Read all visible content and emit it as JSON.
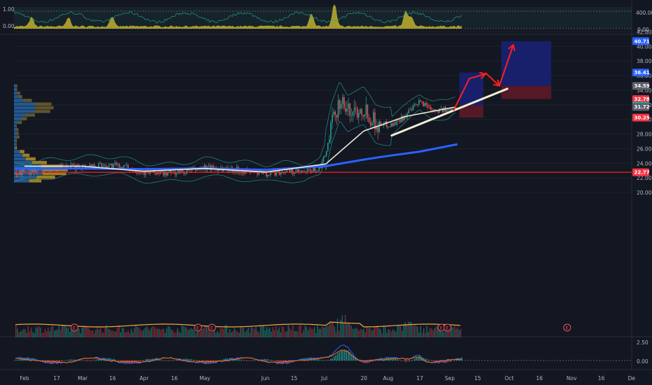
{
  "chart_data": [
    {
      "type": "line",
      "panel": "indicator-top",
      "ylim": [
        0,
        1
      ],
      "ticks_left": [
        "1.00",
        "0.00"
      ],
      "ticks_right": [
        "400.00",
        "0.00"
      ],
      "colors": {
        "fill": "#c9b92e",
        "line": "#26a69a"
      }
    },
    {
      "type": "candlestick",
      "panel": "price",
      "ylim": [
        19.2,
        43.5
      ],
      "y_ticks": [
        "42.00",
        "40.00",
        "38.00",
        "36.00",
        "34.00",
        "32.00",
        "30.00",
        "28.00",
        "26.00",
        "24.00",
        "22.00",
        "20.00"
      ],
      "x_ticks": [
        "Feb",
        "17",
        "Mar",
        "16",
        "Apr",
        "16",
        "May",
        "Jun",
        "15",
        "Jul",
        "20",
        "Aug",
        "17",
        "Sep",
        "15",
        "Oct",
        "16",
        "Nov",
        "16",
        "De"
      ],
      "x_tick_dates": [
        "2020-02-01",
        "2020-02-17",
        "2020-03-01",
        "2020-03-16",
        "2020-04-01",
        "2020-04-16",
        "2020-05-01",
        "2020-06-01",
        "2020-06-15",
        "2020-07-01",
        "2020-07-20",
        "2020-08-01",
        "2020-08-17",
        "2020-09-01",
        "2020-09-15",
        "2020-10-01",
        "2020-10-16",
        "2020-11-01",
        "2020-11-16",
        "2020-12-01"
      ],
      "price_trend": [
        [
          "2020-01-27",
          22.6
        ],
        [
          "2020-02-10",
          23.2
        ],
        [
          "2020-02-20",
          23.4
        ],
        [
          "2020-03-01",
          23.6
        ],
        [
          "2020-03-10",
          23.8
        ],
        [
          "2020-03-20",
          23.6
        ],
        [
          "2020-04-01",
          22.8
        ],
        [
          "2020-04-10",
          22.6
        ],
        [
          "2020-04-20",
          22.8
        ],
        [
          "2020-05-01",
          23.4
        ],
        [
          "2020-05-10",
          23.3
        ],
        [
          "2020-05-20",
          23.0
        ],
        [
          "2020-06-01",
          22.6
        ],
        [
          "2020-06-10",
          22.9
        ],
        [
          "2020-06-20",
          22.7
        ],
        [
          "2020-06-28",
          23.4
        ],
        [
          "2020-07-01",
          25.5
        ],
        [
          "2020-07-04",
          29.5
        ],
        [
          "2020-07-08",
          32.8
        ],
        [
          "2020-07-12",
          31.0
        ],
        [
          "2020-07-20",
          31.6
        ],
        [
          "2020-07-26",
          29.4
        ],
        [
          "2020-08-03",
          29.3
        ],
        [
          "2020-08-10",
          30.6
        ],
        [
          "2020-08-17",
          32.4
        ],
        [
          "2020-08-24",
          31.4
        ],
        [
          "2020-08-31",
          31.2
        ],
        [
          "2020-09-04",
          31.9
        ]
      ],
      "series": [
        {
          "name": "",
          "color": "#2962ff",
          "points": [
            [
              "2020-01-27",
              23.3
            ],
            [
              "2020-03-01",
              23.3
            ],
            [
              "2020-04-01",
              23.2
            ],
            [
              "2020-05-01",
              23.3
            ],
            [
              "2020-06-01",
              23.1
            ],
            [
              "2020-07-01",
              23.6
            ],
            [
              "2020-07-20",
              24.5
            ],
            [
              "2020-08-01",
              25.0
            ],
            [
              "2020-08-17",
              25.6
            ],
            [
              "2020-09-05",
              26.6
            ]
          ]
        },
        {
          "name": "",
          "color": "#f0ead6",
          "points": [
            [
              "2020-02-01",
              23.6
            ],
            [
              "2020-03-01",
              23.6
            ],
            [
              "2020-04-01",
              22.9
            ],
            [
              "2020-05-01",
              23.3
            ],
            [
              "2020-06-01",
              22.8
            ],
            [
              "2020-07-01",
              23.9
            ],
            [
              "2020-07-20",
              28.4
            ],
            [
              "2020-08-10",
              30.4
            ],
            [
              "2020-09-04",
              31.7
            ]
          ]
        }
      ],
      "horizontal_lines": [
        {
          "value": 22.77,
          "color": "#ff1f1f"
        }
      ],
      "trendline": {
        "from": [
          "2020-08-03",
          27.8
        ],
        "to": [
          "2020-09-30",
          34.2
        ],
        "color": "#f3ecd2"
      },
      "position_boxes": [
        {
          "x0": "2020-09-06",
          "x1": "2020-09-18",
          "target": 36.41,
          "entry": 31.9,
          "stop": 30.25
        },
        {
          "x0": "2020-09-27",
          "x1": "2020-10-22",
          "target": 40.71,
          "entry": 34.59,
          "stop": 32.78
        }
      ],
      "arrows": [
        {
          "points": [
            [
              "2020-09-03",
              31.2
            ],
            [
              "2020-09-11",
              35.6
            ],
            [
              "2020-09-19",
              36.2
            ]
          ],
          "color": "#ff1f1f"
        },
        {
          "points": [
            [
              "2020-09-26",
              34.6
            ],
            [
              "2020-10-03",
              40.2
            ]
          ],
          "color": "#ff1f1f"
        },
        {
          "points": [
            [
              "2020-09-19",
              36.4
            ],
            [
              "2020-09-26",
              34.6
            ]
          ],
          "color": "#ff1f1f"
        }
      ],
      "price_badges": [
        {
          "value": "40.71",
          "color": "#2962ff"
        },
        {
          "value": "36.41",
          "color": "#2962ff"
        },
        {
          "value": "34.59",
          "color": "#5d606b"
        },
        {
          "value": "32.78",
          "color": "#f23645"
        },
        {
          "value": "31.90",
          "color": "#26a69a"
        },
        {
          "value": "31.72",
          "color": "#5d606b"
        },
        {
          "value": "30.25",
          "color": "#f23645"
        },
        {
          "value": "22.77",
          "color": "#f23645"
        }
      ],
      "earnings_markers": [
        "2020-02-26",
        "2020-04-28",
        "2020-05-05",
        "2020-08-28",
        "2020-08-31",
        "2020-10-30"
      ],
      "earnings_label": "E"
    },
    {
      "type": "histogram",
      "panel": "indicator-bottom",
      "ylim": [
        -1,
        2.5
      ],
      "y_ticks": [
        "2.50",
        "0.00"
      ],
      "colors": {
        "macd": "#2962ff",
        "signal": "#ff6d00",
        "up": "#26a69a",
        "down": "#ef5350"
      }
    }
  ]
}
